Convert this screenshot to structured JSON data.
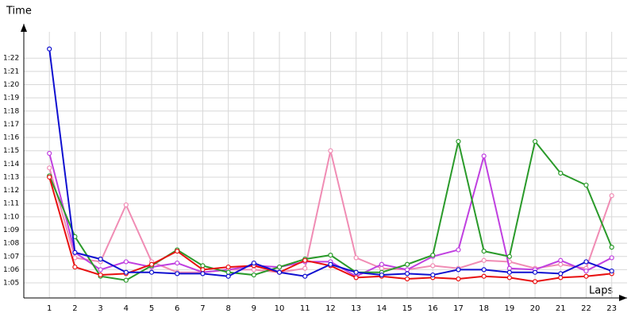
{
  "chart_data": {
    "type": "line",
    "y_label": "Time",
    "x_label": "Laps",
    "x": [
      1,
      2,
      3,
      4,
      5,
      6,
      7,
      8,
      9,
      10,
      11,
      12,
      13,
      14,
      15,
      16,
      17,
      18,
      19,
      20,
      21,
      22,
      23
    ],
    "xlim": [
      0,
      23.6
    ],
    "xticks": [
      1,
      2,
      3,
      4,
      5,
      6,
      7,
      8,
      9,
      10,
      11,
      12,
      13,
      14,
      15,
      16,
      17,
      18,
      19,
      20,
      21,
      22,
      23
    ],
    "ylim": [
      63.86,
      84.6
    ],
    "yticks": [
      {
        "value": 65,
        "label": "1:05"
      },
      {
        "value": 66,
        "label": "1:06"
      },
      {
        "value": 67,
        "label": "1:07"
      },
      {
        "value": 68,
        "label": "1:08"
      },
      {
        "value": 69,
        "label": "1:09"
      },
      {
        "value": 70,
        "label": "1:10"
      },
      {
        "value": 71,
        "label": "1:11"
      },
      {
        "value": 72,
        "label": "1:12"
      },
      {
        "value": 73,
        "label": "1:13"
      },
      {
        "value": 74,
        "label": "1:14"
      },
      {
        "value": 75,
        "label": "1:15"
      },
      {
        "value": 76,
        "label": "1:16"
      },
      {
        "value": 77,
        "label": "1:17"
      },
      {
        "value": 78,
        "label": "1:18"
      },
      {
        "value": 79,
        "label": "1:19"
      },
      {
        "value": 80,
        "label": "1:20"
      },
      {
        "value": 81,
        "label": "1:21"
      },
      {
        "value": 82,
        "label": "1:22"
      }
    ],
    "grid": true,
    "series": [
      {
        "color": "#f08cb4",
        "values": [
          73.7,
          66.9,
          66.6,
          70.9,
          66.6,
          65.8,
          65.8,
          66.0,
          66.0,
          65.8,
          66.1,
          75.0,
          66.9,
          66.1,
          66.0,
          66.3,
          66.1,
          66.7,
          66.6,
          66.1,
          66.4,
          66.1,
          71.6
        ]
      },
      {
        "color": "#c040e0",
        "values": [
          74.8,
          67.3,
          66.0,
          66.6,
          66.2,
          66.5,
          65.8,
          66.0,
          66.3,
          66.2,
          66.6,
          66.6,
          65.5,
          66.4,
          66.0,
          67.0,
          67.5,
          74.6,
          66.1,
          66.0,
          66.7,
          65.9,
          66.9
        ]
      },
      {
        "color": "#2a9a2a",
        "values": [
          73.1,
          68.5,
          65.5,
          65.2,
          66.3,
          67.5,
          66.3,
          65.8,
          65.6,
          66.2,
          66.8,
          67.1,
          65.8,
          65.8,
          66.4,
          67.1,
          75.7,
          67.4,
          67.0,
          75.7,
          73.3,
          72.4,
          67.7
        ]
      },
      {
        "color": "#e81010",
        "values": [
          73.0,
          66.2,
          65.6,
          65.7,
          66.4,
          67.4,
          66.0,
          66.2,
          66.3,
          65.8,
          66.7,
          66.3,
          65.4,
          65.5,
          65.3,
          65.4,
          65.3,
          65.5,
          65.4,
          65.1,
          65.4,
          65.5,
          65.7
        ]
      },
      {
        "color": "#1010d0",
        "values": [
          82.7,
          67.3,
          66.8,
          65.8,
          65.8,
          65.7,
          65.7,
          65.5,
          66.5,
          65.8,
          65.5,
          66.4,
          65.8,
          65.6,
          65.7,
          65.6,
          66.0,
          66.0,
          65.8,
          65.8,
          65.7,
          66.6,
          65.9
        ]
      }
    ]
  }
}
